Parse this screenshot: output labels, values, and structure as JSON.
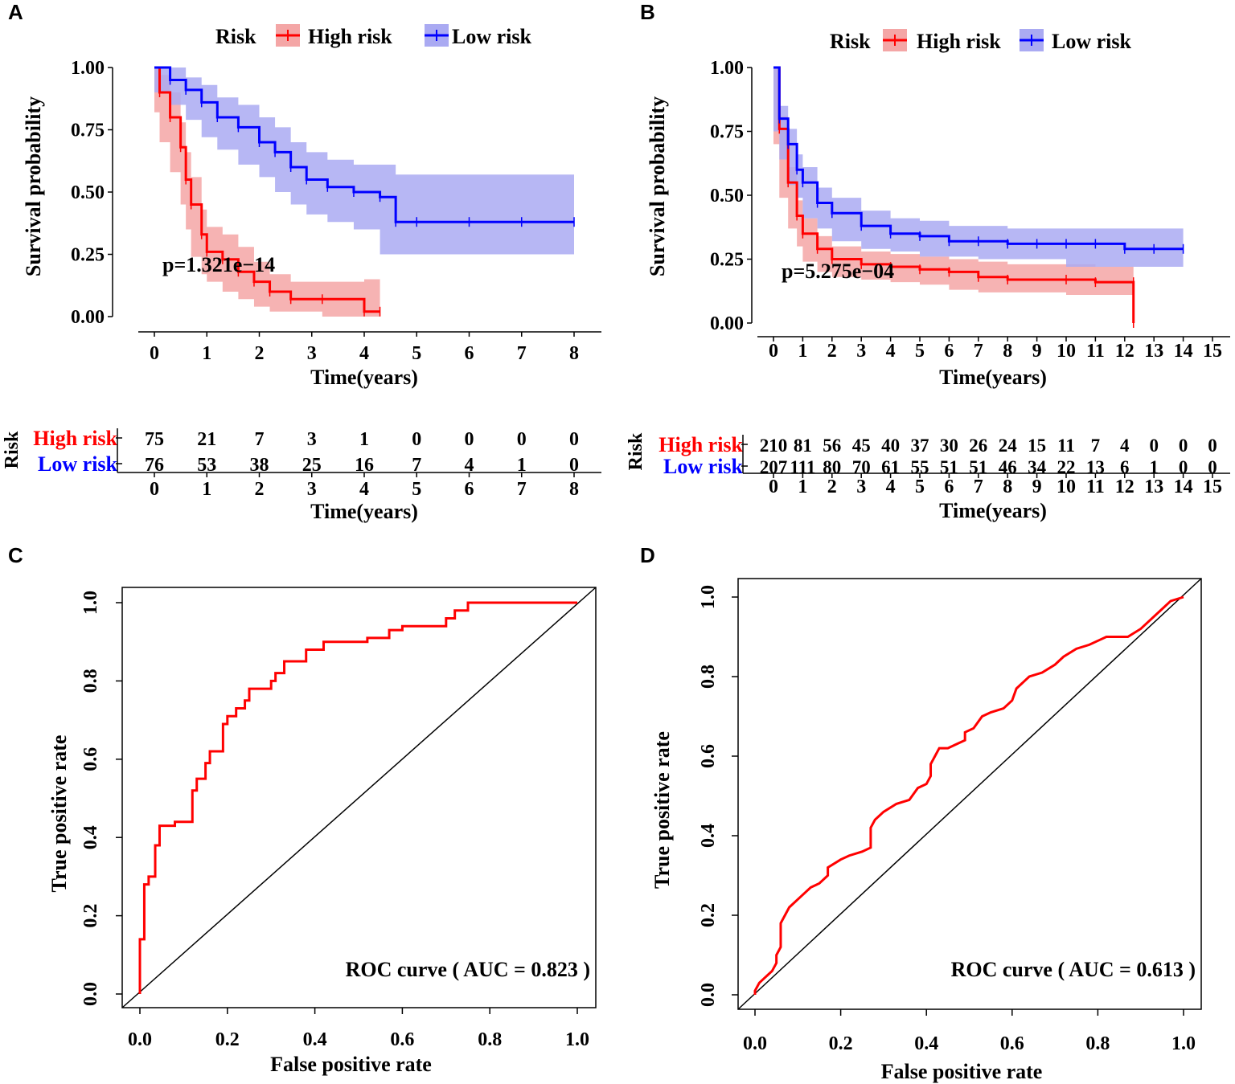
{
  "chart_data": [
    {
      "panel": "A",
      "type": "line",
      "subtype": "kaplan-meier",
      "xlabel": "Time(years)",
      "ylabel": "Survival probability",
      "xlim": [
        0,
        8
      ],
      "ylim": [
        0,
        1
      ],
      "x_ticks": [
        "0",
        "1",
        "2",
        "3",
        "4",
        "5",
        "6",
        "7",
        "8"
      ],
      "y_ticks": [
        "0.00",
        "0.25",
        "0.50",
        "0.75",
        "1.00"
      ],
      "legend_title": "Risk",
      "legend_labels": [
        "High risk",
        "Low risk"
      ],
      "pvalue": "p=1.321e−14",
      "series": [
        {
          "name": "High risk",
          "color": "#ff0000",
          "fill": "#f4a6a6",
          "x": [
            0,
            0.1,
            0.3,
            0.5,
            0.6,
            0.7,
            0.9,
            1.0,
            1.3,
            1.6,
            1.9,
            2.2,
            2.6,
            3.2,
            4.0,
            4.3
          ],
          "y": [
            1.0,
            0.9,
            0.8,
            0.68,
            0.55,
            0.45,
            0.33,
            0.26,
            0.23,
            0.18,
            0.14,
            0.1,
            0.07,
            0.07,
            0.02,
            0.02
          ],
          "lower": [
            0.97,
            0.82,
            0.7,
            0.58,
            0.45,
            0.35,
            0.24,
            0.17,
            0.14,
            0.1,
            0.07,
            0.04,
            0.02,
            0.02,
            0.0,
            0.0
          ],
          "upper": [
            1.0,
            0.97,
            0.9,
            0.78,
            0.66,
            0.56,
            0.43,
            0.36,
            0.33,
            0.28,
            0.22,
            0.17,
            0.14,
            0.14,
            0.15,
            0.15
          ]
        },
        {
          "name": "Low risk",
          "color": "#0000ff",
          "fill": "#aaaaf2",
          "x": [
            0,
            0.3,
            0.6,
            0.9,
            1.2,
            1.6,
            2.0,
            2.3,
            2.6,
            2.9,
            3.3,
            3.8,
            4.3,
            4.6,
            5.0,
            6.0,
            7.0,
            8.0
          ],
          "y": [
            1.0,
            0.95,
            0.91,
            0.86,
            0.8,
            0.76,
            0.7,
            0.66,
            0.6,
            0.55,
            0.52,
            0.5,
            0.48,
            0.38,
            0.38,
            0.38,
            0.38,
            0.38
          ],
          "lower": [
            0.98,
            0.9,
            0.85,
            0.79,
            0.72,
            0.67,
            0.61,
            0.56,
            0.5,
            0.45,
            0.41,
            0.38,
            0.35,
            0.25,
            0.25,
            0.25,
            0.25,
            0.25
          ],
          "upper": [
            1.0,
            1.0,
            0.96,
            0.93,
            0.88,
            0.85,
            0.8,
            0.76,
            0.7,
            0.66,
            0.63,
            0.61,
            0.61,
            0.57,
            0.57,
            0.57,
            0.57,
            0.57
          ]
        }
      ],
      "risk_table": {
        "title": "Risk",
        "xlabel": "Time(years)",
        "x_ticks": [
          "0",
          "1",
          "2",
          "3",
          "4",
          "5",
          "6",
          "7",
          "8"
        ],
        "rows": [
          {
            "label": "High risk",
            "color": "#ff0000",
            "values": [
              "75",
              "21",
              "7",
              "3",
              "1",
              "0",
              "0",
              "0",
              "0"
            ]
          },
          {
            "label": "Low risk",
            "color": "#0000ff",
            "values": [
              "76",
              "53",
              "38",
              "25",
              "16",
              "7",
              "4",
              "1",
              "0"
            ]
          }
        ]
      }
    },
    {
      "panel": "B",
      "type": "line",
      "subtype": "kaplan-meier",
      "xlabel": "Time(years)",
      "ylabel": "Survival probability",
      "xlim": [
        0,
        15
      ],
      "ylim": [
        0,
        1
      ],
      "x_ticks": [
        "0",
        "1",
        "2",
        "3",
        "4",
        "5",
        "6",
        "7",
        "8",
        "9",
        "10",
        "11",
        "12",
        "13",
        "14",
        "15"
      ],
      "y_ticks": [
        "0.00",
        "0.25",
        "0.50",
        "0.75",
        "1.00"
      ],
      "legend_title": "Risk",
      "legend_labels": [
        "High risk",
        "Low risk"
      ],
      "pvalue": "p=5.275e−04",
      "series": [
        {
          "name": "High risk",
          "color": "#ff0000",
          "fill": "#f4a6a6",
          "x": [
            0,
            0.2,
            0.5,
            0.8,
            1.0,
            1.5,
            2.0,
            3.0,
            4.0,
            5.0,
            6.0,
            7.0,
            8.0,
            10.0,
            11.0,
            12.3,
            12.3
          ],
          "y": [
            1.0,
            0.76,
            0.55,
            0.42,
            0.35,
            0.29,
            0.25,
            0.23,
            0.22,
            0.21,
            0.2,
            0.18,
            0.17,
            0.17,
            0.16,
            0.16,
            0.0
          ],
          "lower": [
            1.0,
            0.7,
            0.49,
            0.37,
            0.3,
            0.24,
            0.2,
            0.18,
            0.17,
            0.16,
            0.15,
            0.13,
            0.12,
            0.12,
            0.11,
            0.11,
            0.0
          ],
          "upper": [
            1.0,
            0.81,
            0.61,
            0.48,
            0.41,
            0.34,
            0.3,
            0.28,
            0.27,
            0.26,
            0.25,
            0.24,
            0.23,
            0.23,
            0.22,
            0.22,
            0.0
          ]
        },
        {
          "name": "Low risk",
          "color": "#0000ff",
          "fill": "#aaaaf2",
          "x": [
            0,
            0.2,
            0.5,
            0.8,
            1.0,
            1.5,
            2.0,
            3.0,
            4.0,
            5.0,
            6.0,
            7.0,
            8.0,
            9.0,
            10.0,
            11.0,
            12.0,
            13.0,
            14.0
          ],
          "y": [
            1.0,
            0.8,
            0.7,
            0.6,
            0.55,
            0.47,
            0.43,
            0.38,
            0.35,
            0.34,
            0.32,
            0.32,
            0.31,
            0.31,
            0.31,
            0.31,
            0.29,
            0.29,
            0.29
          ],
          "lower": [
            1.0,
            0.75,
            0.64,
            0.54,
            0.49,
            0.41,
            0.37,
            0.32,
            0.29,
            0.28,
            0.26,
            0.26,
            0.25,
            0.25,
            0.25,
            0.22,
            0.22,
            0.22,
            0.22
          ],
          "upper": [
            1.0,
            0.85,
            0.76,
            0.66,
            0.61,
            0.53,
            0.49,
            0.44,
            0.41,
            0.4,
            0.38,
            0.38,
            0.37,
            0.37,
            0.37,
            0.37,
            0.37,
            0.37,
            0.37
          ]
        }
      ],
      "risk_table": {
        "title": "Risk",
        "xlabel": "Time(years)",
        "x_ticks": [
          "0",
          "1",
          "2",
          "3",
          "4",
          "5",
          "6",
          "7",
          "8",
          "9",
          "10",
          "11",
          "12",
          "13",
          "14",
          "15"
        ],
        "rows": [
          {
            "label": "High risk",
            "color": "#ff0000",
            "values": [
              "210",
              "81",
              "56",
              "45",
              "40",
              "37",
              "30",
              "26",
              "24",
              "15",
              "11",
              "7",
              "4",
              "0",
              "0",
              "0"
            ]
          },
          {
            "label": "Low risk",
            "color": "#0000ff",
            "values": [
              "207",
              "111",
              "80",
              "70",
              "61",
              "55",
              "51",
              "51",
              "46",
              "34",
              "22",
              "13",
              "6",
              "1",
              "0",
              "0"
            ]
          }
        ]
      }
    },
    {
      "panel": "C",
      "type": "line",
      "subtype": "roc",
      "xlabel": "False positive rate",
      "ylabel": "True positive rate",
      "xlim": [
        0,
        1
      ],
      "ylim": [
        0,
        1
      ],
      "x_ticks": [
        "0.0",
        "0.2",
        "0.4",
        "0.6",
        "0.8",
        "1.0"
      ],
      "y_ticks": [
        "0.0",
        "0.2",
        "0.4",
        "0.6",
        "0.8",
        "1.0"
      ],
      "annotation": "ROC curve ( AUC =  0.823 )",
      "series": [
        {
          "name": "ROC",
          "color": "#ff0000",
          "x": [
            0,
            0,
            0.01,
            0.01,
            0.02,
            0.02,
            0.03,
            0.035,
            0.035,
            0.045,
            0.045,
            0.055,
            0.055,
            0.08,
            0.08,
            0.12,
            0.12,
            0.13,
            0.13,
            0.15,
            0.15,
            0.16,
            0.16,
            0.19,
            0.19,
            0.2,
            0.2,
            0.22,
            0.22,
            0.24,
            0.24,
            0.25,
            0.25,
            0.3,
            0.3,
            0.31,
            0.31,
            0.33,
            0.33,
            0.38,
            0.38,
            0.42,
            0.42,
            0.52,
            0.52,
            0.57,
            0.57,
            0.6,
            0.6,
            0.7,
            0.7,
            0.72,
            0.72,
            0.75,
            0.75,
            0.88,
            0.88,
            1.0
          ],
          "y": [
            0,
            0.14,
            0.14,
            0.28,
            0.28,
            0.3,
            0.3,
            0.3,
            0.38,
            0.38,
            0.43,
            0.43,
            0.43,
            0.43,
            0.44,
            0.44,
            0.52,
            0.52,
            0.55,
            0.55,
            0.59,
            0.59,
            0.62,
            0.62,
            0.69,
            0.69,
            0.71,
            0.71,
            0.73,
            0.73,
            0.75,
            0.75,
            0.78,
            0.78,
            0.8,
            0.8,
            0.82,
            0.82,
            0.85,
            0.85,
            0.88,
            0.88,
            0.9,
            0.9,
            0.91,
            0.91,
            0.93,
            0.93,
            0.94,
            0.94,
            0.96,
            0.96,
            0.98,
            0.98,
            1.0,
            1.0,
            1.0,
            1.0
          ]
        }
      ]
    },
    {
      "panel": "D",
      "type": "line",
      "subtype": "roc",
      "xlabel": "False positive rate",
      "ylabel": "True positive rate",
      "xlim": [
        0,
        1
      ],
      "ylim": [
        0,
        1
      ],
      "x_ticks": [
        "0.0",
        "0.2",
        "0.4",
        "0.6",
        "0.8",
        "1.0"
      ],
      "y_ticks": [
        "0.0",
        "0.2",
        "0.4",
        "0.6",
        "0.8",
        "1.0"
      ],
      "annotation": "ROC curve ( AUC =  0.613 )",
      "series": [
        {
          "name": "ROC",
          "color": "#ff0000",
          "x": [
            0,
            0.0,
            0.01,
            0.02,
            0.03,
            0.04,
            0.05,
            0.05,
            0.06,
            0.06,
            0.07,
            0.08,
            0.1,
            0.12,
            0.13,
            0.15,
            0.16,
            0.17,
            0.17,
            0.2,
            0.22,
            0.25,
            0.27,
            0.27,
            0.28,
            0.3,
            0.33,
            0.36,
            0.38,
            0.4,
            0.41,
            0.41,
            0.42,
            0.43,
            0.45,
            0.47,
            0.49,
            0.49,
            0.51,
            0.53,
            0.55,
            0.58,
            0.6,
            0.61,
            0.63,
            0.64,
            0.67,
            0.7,
            0.72,
            0.75,
            0.78,
            0.8,
            0.82,
            0.85,
            0.87,
            0.9,
            0.92,
            0.93,
            0.95,
            0.97,
            1.0
          ],
          "y": [
            0,
            0.01,
            0.03,
            0.04,
            0.05,
            0.06,
            0.08,
            0.1,
            0.12,
            0.18,
            0.2,
            0.22,
            0.24,
            0.26,
            0.27,
            0.28,
            0.29,
            0.3,
            0.32,
            0.34,
            0.35,
            0.36,
            0.37,
            0.42,
            0.44,
            0.46,
            0.48,
            0.49,
            0.52,
            0.53,
            0.55,
            0.58,
            0.6,
            0.62,
            0.62,
            0.63,
            0.64,
            0.66,
            0.67,
            0.7,
            0.71,
            0.72,
            0.74,
            0.77,
            0.79,
            0.8,
            0.81,
            0.83,
            0.85,
            0.87,
            0.88,
            0.89,
            0.9,
            0.9,
            0.9,
            0.92,
            0.94,
            0.95,
            0.97,
            0.99,
            1.0
          ]
        }
      ]
    }
  ],
  "panel_letters": [
    "A",
    "B",
    "C",
    "D"
  ]
}
